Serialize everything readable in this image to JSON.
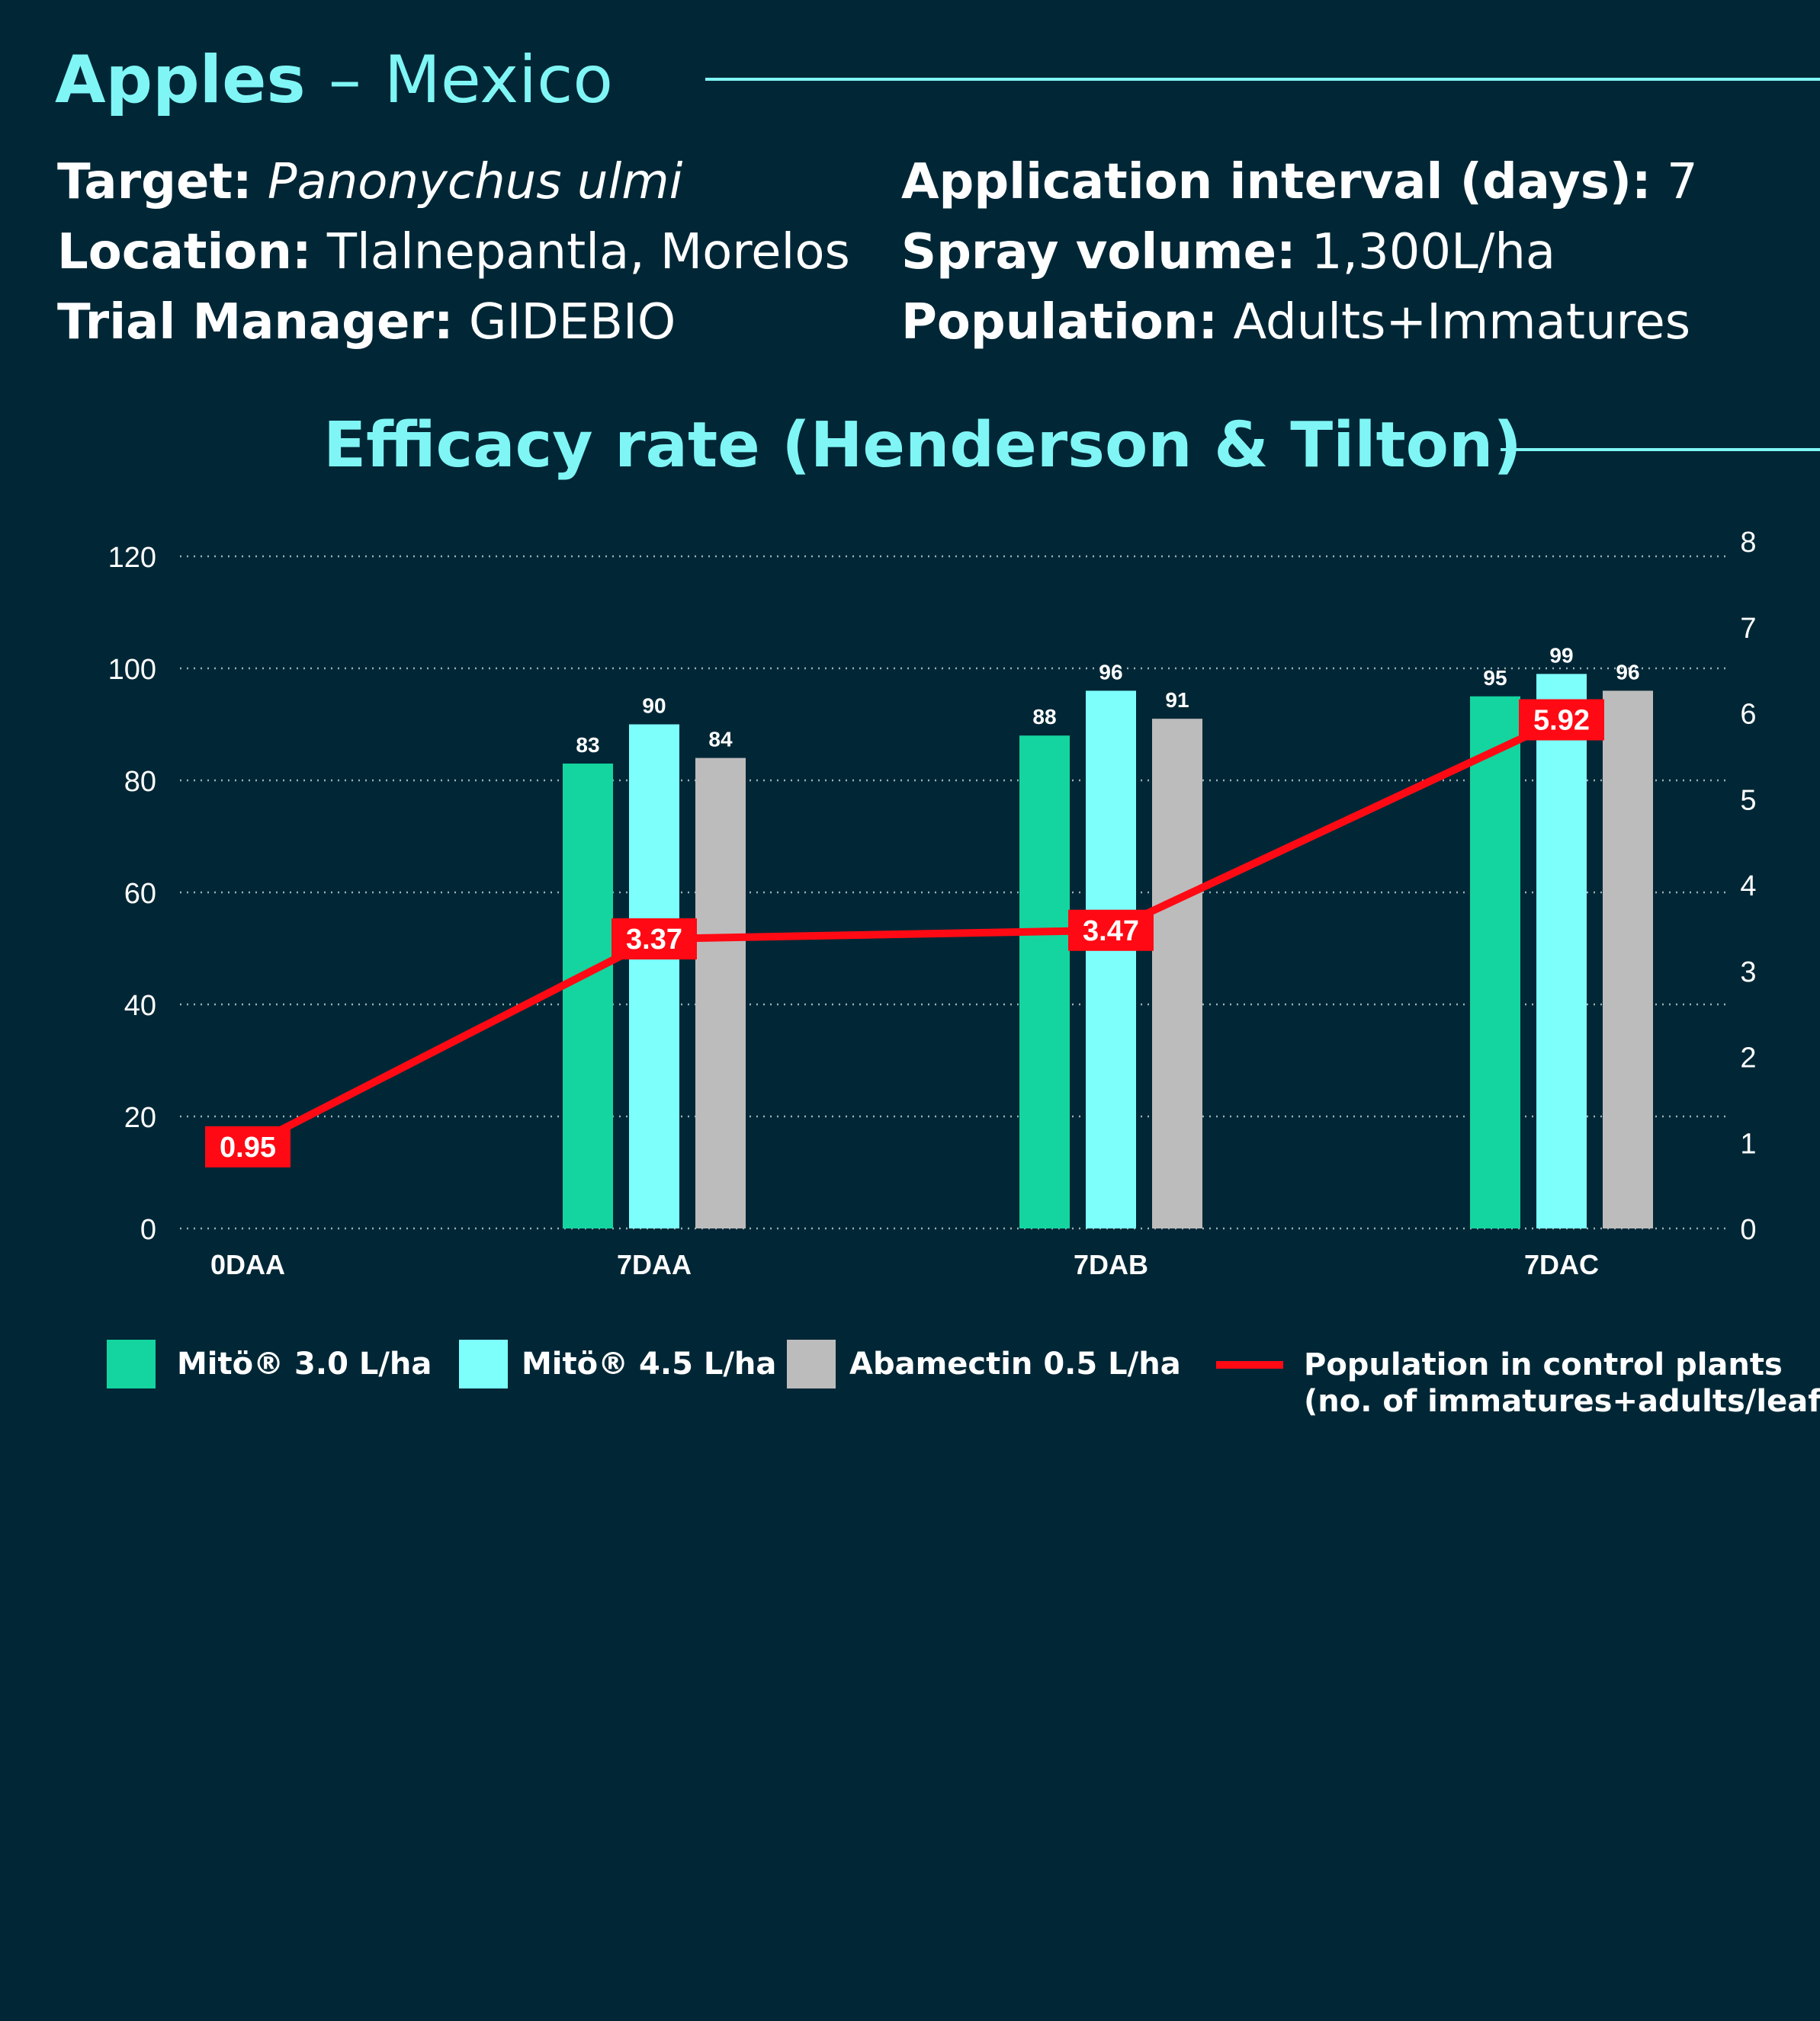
{
  "header": {
    "crop": "Apples",
    "separator": "–",
    "country": "Mexico"
  },
  "info": {
    "target_label": "Target:",
    "target_value": "Panonychus ulmi",
    "location_label": "Location:",
    "location_value": "Tlalnepantla, Morelos",
    "manager_label": "Trial Manager:",
    "manager_value": "GIDEBIO",
    "interval_label": "Application interval (days):",
    "interval_value": "7",
    "spray_label": "Spray volume:",
    "spray_value": "1,300L/ha",
    "population_label": "Population:",
    "population_value": "Adults+Immatures"
  },
  "colors": {
    "background": "#012736",
    "accent": "#7ff6f5",
    "mito30": "#14d59f",
    "mito45": "#7dfffc",
    "abamectin": "#bdbcbc",
    "control_line": "#ff0a14",
    "text": "#ffffff",
    "grid": "#9fb0b6"
  },
  "legend": {
    "mito30": "Mitö® 3.0 L/ha",
    "mito45": "Mitö® 4.5 L/ha",
    "abamectin": "Abamectin 0.5 L/ha",
    "control_line_1": "Population in control plants",
    "control_line_2": "(no. of immatures+adults/leaf)"
  },
  "chart_data": {
    "type": "bar",
    "title": "Efficacy rate (Henderson & Tilton)",
    "categories": [
      "0DAA",
      "7DAA",
      "7DAB",
      "7DAC"
    ],
    "series": [
      {
        "name": "Mitö® 3.0 L/ha",
        "values": [
          null,
          83,
          88,
          95
        ]
      },
      {
        "name": "Mitö® 4.5 L/ha",
        "values": [
          null,
          90,
          96,
          99
        ]
      },
      {
        "name": "Abamectin 0.5 L/ha",
        "values": [
          null,
          84,
          91,
          96
        ]
      }
    ],
    "bar_labels": [
      [
        null,
        "83",
        "88",
        "95"
      ],
      [
        null,
        "90",
        "96",
        "99"
      ],
      [
        null,
        "84",
        "91",
        "96"
      ]
    ],
    "line_series": {
      "name": "Population in control plants (no. of immatures+adults/leaf)",
      "axis": "right",
      "values": [
        0.95,
        3.37,
        3.47,
        5.92
      ],
      "labels": [
        "0.95",
        "3.37",
        "3.47",
        "5.92"
      ]
    },
    "y_left": {
      "ylim": [
        0,
        120
      ],
      "ticks": [
        "0",
        "20",
        "40",
        "60",
        "80",
        "100",
        "120"
      ]
    },
    "y_right": {
      "ylim": [
        0,
        8
      ],
      "ticks": [
        "0",
        "1",
        "2",
        "3",
        "4",
        "5",
        "6",
        "7",
        "8"
      ]
    },
    "grid": "dotted horizontal",
    "legend_position": "bottom"
  }
}
